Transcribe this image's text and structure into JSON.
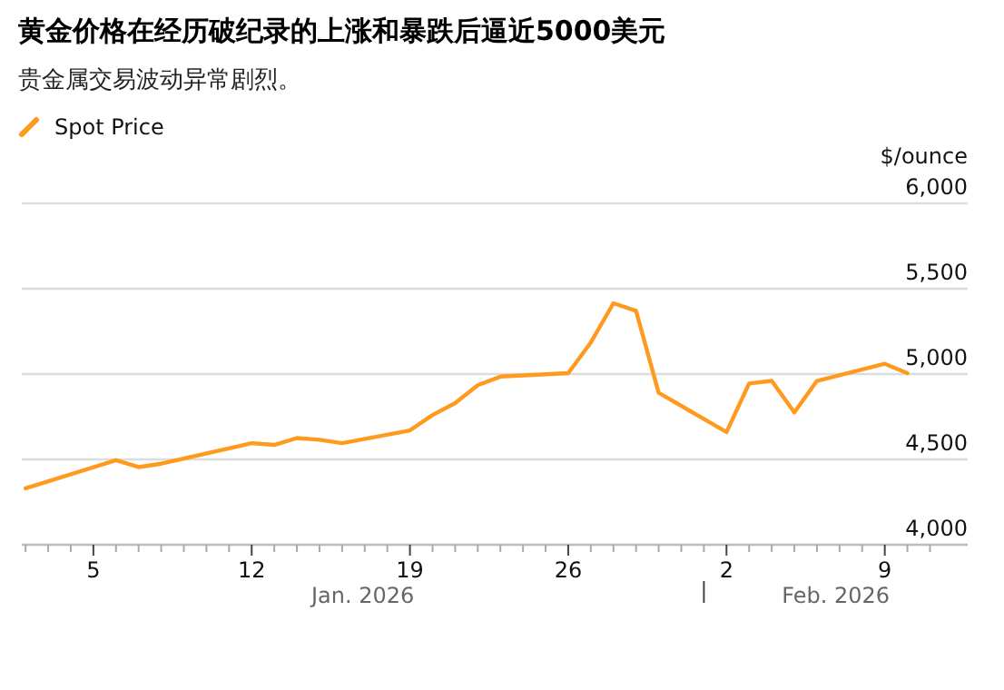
{
  "chart_data": {
    "type": "line",
    "title": "黄金价格在经历破纪录的上涨和暴跌后逼近5000美元",
    "subtitle": "贵金属交易波动异常剧烈。",
    "ylabel": "$/ounce",
    "annotations": [
      "Jan. 2026",
      "Feb. 2026"
    ],
    "x": [
      "2026-01-02",
      "2026-01-06",
      "2026-01-07",
      "2026-01-08",
      "2026-01-12",
      "2026-01-13",
      "2026-01-14",
      "2026-01-15",
      "2026-01-16",
      "2026-01-19",
      "2026-01-20",
      "2026-01-21",
      "2026-01-22",
      "2026-01-23",
      "2026-01-26",
      "2026-01-27",
      "2026-01-28",
      "2026-01-29",
      "2026-01-30",
      "2026-02-02",
      "2026-02-03",
      "2026-02-04",
      "2026-02-05",
      "2026-02-06",
      "2026-02-09",
      "2026-02-10"
    ],
    "series": [
      {
        "name": "Spot Price",
        "color": "#ff9a1f",
        "values": [
          4330,
          4495,
          4455,
          4475,
          4595,
          4585,
          4625,
          4615,
          4595,
          4670,
          4760,
          4830,
          4935,
          4985,
          5005,
          5185,
          5415,
          5370,
          4890,
          4660,
          4945,
          4960,
          4775,
          4960,
          5060,
          5005
        ]
      }
    ],
    "xlim": [
      "2026-01-01T20:00",
      "2026-02-12T16:00"
    ],
    "xticks": [
      {
        "value": "2026-01-02",
        "label": null
      },
      {
        "value": "2026-01-03",
        "label": null
      },
      {
        "value": "2026-01-04",
        "label": null
      },
      {
        "value": "2026-01-05",
        "label": "5"
      },
      {
        "value": "2026-01-06",
        "label": null
      },
      {
        "value": "2026-01-07",
        "label": null
      },
      {
        "value": "2026-01-08",
        "label": null
      },
      {
        "value": "2026-01-09",
        "label": null
      },
      {
        "value": "2026-01-10",
        "label": null
      },
      {
        "value": "2026-01-11",
        "label": null
      },
      {
        "value": "2026-01-12",
        "label": "12"
      },
      {
        "value": "2026-01-13",
        "label": null
      },
      {
        "value": "2026-01-14",
        "label": null
      },
      {
        "value": "2026-01-15",
        "label": null
      },
      {
        "value": "2026-01-16",
        "label": null
      },
      {
        "value": "2026-01-17",
        "label": null
      },
      {
        "value": "2026-01-18",
        "label": null
      },
      {
        "value": "2026-01-19",
        "label": "19"
      },
      {
        "value": "2026-01-20",
        "label": null
      },
      {
        "value": "2026-01-21",
        "label": null
      },
      {
        "value": "2026-01-22",
        "label": null
      },
      {
        "value": "2026-01-23",
        "label": null
      },
      {
        "value": "2026-01-24",
        "label": null
      },
      {
        "value": "2026-01-25",
        "label": null
      },
      {
        "value": "2026-01-26",
        "label": "26"
      },
      {
        "value": "2026-01-27",
        "label": null
      },
      {
        "value": "2026-01-28",
        "label": null
      },
      {
        "value": "2026-01-29",
        "label": null
      },
      {
        "value": "2026-01-30",
        "label": null
      },
      {
        "value": "2026-01-31",
        "label": null
      },
      {
        "value": "2026-02-01",
        "label": null
      },
      {
        "value": "2026-02-02",
        "label": "2"
      },
      {
        "value": "2026-02-03",
        "label": null
      },
      {
        "value": "2026-02-04",
        "label": null
      },
      {
        "value": "2026-02-05",
        "label": null
      },
      {
        "value": "2026-02-06",
        "label": null
      },
      {
        "value": "2026-02-07",
        "label": null
      },
      {
        "value": "2026-02-08",
        "label": null
      },
      {
        "value": "2026-02-09",
        "label": "9"
      },
      {
        "value": "2026-02-10",
        "label": null
      },
      {
        "value": "2026-02-11",
        "label": null
      }
    ],
    "ylim": [
      4000,
      6000
    ],
    "yticks": [
      {
        "value": 4000,
        "label": "4,000"
      },
      {
        "value": 4500,
        "label": "4,500"
      },
      {
        "value": 5000,
        "label": "5,000"
      },
      {
        "value": 5500,
        "label": "5,500"
      },
      {
        "value": 6000,
        "label": "6,000"
      }
    ],
    "grid": "y",
    "legend": "top left"
  }
}
